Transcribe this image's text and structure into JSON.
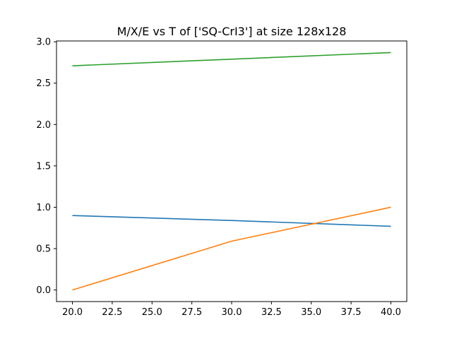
{
  "chart_data": {
    "type": "line",
    "title": "M/X/E vs T of ['SQ-CrI3'] at size 128x128",
    "xlabel": "",
    "ylabel": "",
    "x": [
      20,
      30,
      40
    ],
    "xlim": [
      19.0,
      41.0
    ],
    "ylim": [
      -0.14,
      3.01
    ],
    "xticks": [
      20.0,
      22.5,
      25.0,
      27.5,
      30.0,
      32.5,
      35.0,
      37.5,
      40.0
    ],
    "xtick_labels": [
      "20.0",
      "22.5",
      "25.0",
      "27.5",
      "30.0",
      "32.5",
      "35.0",
      "37.5",
      "40.0"
    ],
    "yticks": [
      0.0,
      0.5,
      1.0,
      1.5,
      2.0,
      2.5,
      3.0
    ],
    "ytick_labels": [
      "0.0",
      "0.5",
      "1.0",
      "1.5",
      "2.0",
      "2.5",
      "3.0"
    ],
    "grid": false,
    "legend": "none",
    "series": [
      {
        "color": "#1f77b4",
        "values": [
          0.9,
          0.84,
          0.77
        ]
      },
      {
        "color": "#ff7f0e",
        "values": [
          0.0,
          0.59,
          1.0
        ]
      },
      {
        "color": "#2ca02c",
        "values": [
          2.71,
          2.79,
          2.87
        ]
      }
    ]
  }
}
